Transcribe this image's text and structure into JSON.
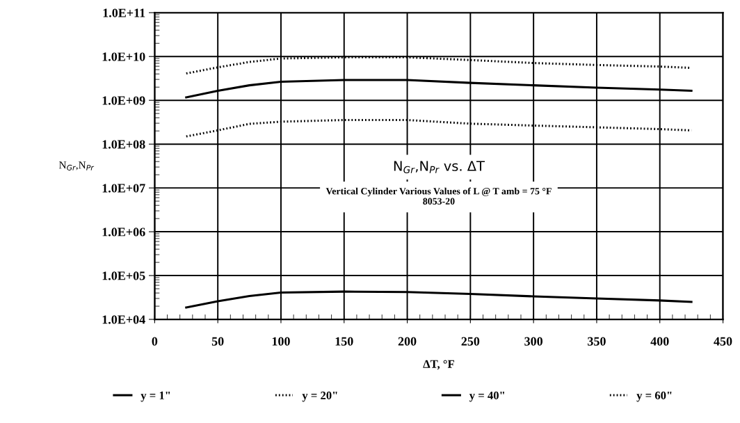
{
  "chart_data": {
    "type": "line",
    "title": "N$_{Gr}$,N$_{Pr}$ vs. ΔT",
    "subtitle": "Vertical Cylinder Various Values of L @ T amb = 75 °F\n8053-20",
    "xlabel": "ΔT, °F",
    "ylabel": "N$_{Gr}$,N$_{Pr}$",
    "x": [
      25,
      50,
      75,
      100,
      150,
      200,
      250,
      300,
      350,
      400,
      425
    ],
    "series": [
      {
        "name": "y = 1\"",
        "color": "#000000",
        "line_style": "solid",
        "values": [
          18600,
          26000,
          34000,
          41000,
          43000,
          42000,
          38000,
          33500,
          30000,
          27000,
          25000
        ]
      },
      {
        "name": "y = 20\"",
        "color": "#000000",
        "line_style": "dotted",
        "values": [
          150000000,
          206000000,
          290000000,
          325000000,
          355000000,
          355000000,
          293000000,
          265000000,
          242000000,
          220000000,
          206000000
        ]
      },
      {
        "name": "y = 40\"",
        "color": "#000000",
        "line_style": "solid",
        "values": [
          1170000000,
          1650000000,
          2200000000,
          2660000000,
          2900000000,
          2900000000,
          2500000000,
          2200000000,
          1940000000,
          1760000000,
          1650000000
        ]
      },
      {
        "name": "y = 60\"",
        "color": "#000000",
        "line_style": "dotted",
        "values": [
          4100000000,
          5650000000,
          7500000000,
          9000000000,
          9600000000,
          9600000000,
          8300000000,
          7100000000,
          6400000000,
          5900000000,
          5500000000
        ]
      }
    ],
    "log": "y",
    "xlim": [
      0,
      450
    ],
    "xticks": [
      0,
      50,
      100,
      150,
      200,
      250,
      300,
      350,
      400,
      450
    ],
    "ylim": [
      10000,
      100000000000
    ],
    "yticks": [
      {
        "value": 10000,
        "label": "1.0E+04"
      },
      {
        "value": 100000,
        "label": "1.0E+05"
      },
      {
        "value": 1000000,
        "label": "1.0E+06"
      },
      {
        "value": 10000000,
        "label": "1.0E+07"
      },
      {
        "value": 100000000,
        "label": "1.0E+08"
      },
      {
        "value": 1000000000,
        "label": "1.0E+09"
      },
      {
        "value": 10000000000,
        "label": "1.0E+10"
      },
      {
        "value": 100000000000,
        "label": "1.0E+11"
      }
    ],
    "grid": true,
    "legend": "bottom",
    "marker": "none"
  }
}
